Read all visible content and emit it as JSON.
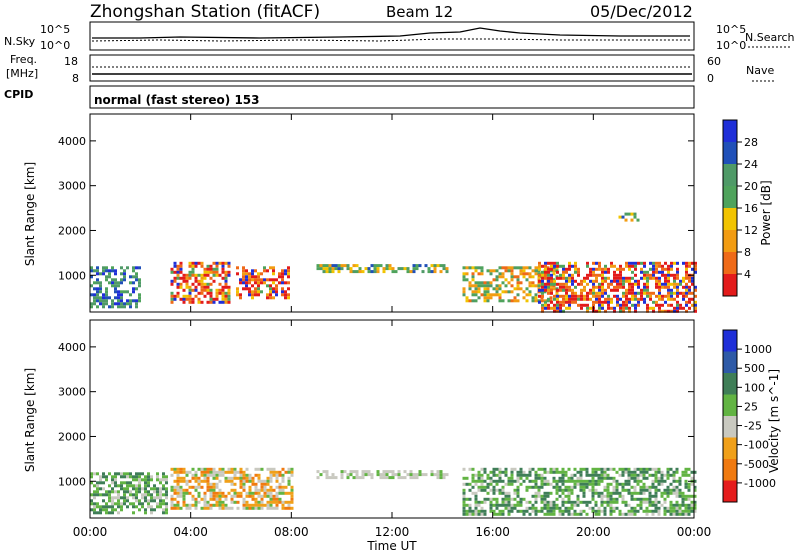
{
  "header": {
    "station_title": "Zhongshan Station (fitACF)",
    "beam_label": "Beam 12",
    "date_label": "05/Dec/2012"
  },
  "noise_panel": {
    "left_label": "N.Sky",
    "right_label": "N.Search",
    "left_ticks": [
      "10^5",
      "10^0"
    ],
    "right_ticks": [
      "10^5",
      "10^0"
    ]
  },
  "freq_panel": {
    "left_label_line1": "Freq.",
    "left_label_line2": "[MHz]",
    "right_label": "Nave",
    "left_ticks": [
      "18",
      "8"
    ],
    "right_ticks": [
      "60",
      "0"
    ]
  },
  "cpid_panel": {
    "label": "CPID",
    "mode_text": "normal (fast stereo) 153"
  },
  "x_axis": {
    "label": "Time UT",
    "ticks": [
      "00:00",
      "04:00",
      "08:00",
      "12:00",
      "16:00",
      "20:00",
      "00:00"
    ]
  },
  "colors": {
    "power_scale": [
      "#1f2fd8",
      "#2050b8",
      "#4f9a67",
      "#4fa35c",
      "#f2c400",
      "#f29c12",
      "#ef6a18",
      "#e31b1b"
    ],
    "velocity_scale": [
      "#1f2fd8",
      "#2e5aa7",
      "#3f7e57",
      "#62b443",
      "#c9c9c0",
      "#f0a01a",
      "#f07a10",
      "#e51c1c"
    ]
  },
  "chart_data": [
    {
      "type": "heatmap",
      "title": "Power",
      "xlabel": "Time UT",
      "ylabel": "Slant Range [km]",
      "x_range_hours_ut": [
        0,
        24
      ],
      "ylim_km": [
        180,
        4600
      ],
      "y_ticks": [
        1000,
        2000,
        3000,
        4000
      ],
      "colorbar": {
        "label": "Power [dB]",
        "ticks": [
          4,
          8,
          12,
          16,
          20,
          24,
          28
        ]
      },
      "echo_regions": [
        {
          "t_start_h": 0.0,
          "t_end_h": 2.0,
          "r_min_km": 300,
          "r_max_km": 1200,
          "level": "low-medium"
        },
        {
          "t_start_h": 3.2,
          "t_end_h": 5.5,
          "r_min_km": 400,
          "r_max_km": 1300,
          "level": "high"
        },
        {
          "t_start_h": 5.8,
          "t_end_h": 7.9,
          "r_min_km": 500,
          "r_max_km": 1200,
          "level": "high"
        },
        {
          "t_start_h": 9.0,
          "t_end_h": 14.2,
          "r_min_km": 1050,
          "r_max_km": 1250,
          "level": "medium"
        },
        {
          "t_start_h": 14.8,
          "t_end_h": 18.5,
          "r_min_km": 400,
          "r_max_km": 1200,
          "level": "medium-high"
        },
        {
          "t_start_h": 17.8,
          "t_end_h": 24.0,
          "r_min_km": 200,
          "r_max_km": 1300,
          "level": "high"
        },
        {
          "t_start_h": 21.0,
          "t_end_h": 21.8,
          "r_min_km": 2200,
          "r_max_km": 2400,
          "level": "medium"
        }
      ]
    },
    {
      "type": "heatmap",
      "title": "Velocity",
      "xlabel": "Time UT",
      "ylabel": "Slant Range [km]",
      "x_range_hours_ut": [
        0,
        24
      ],
      "ylim_km": [
        180,
        4600
      ],
      "y_ticks": [
        1000,
        2000,
        3000,
        4000
      ],
      "colorbar": {
        "label": "Velocity [m s^-1]",
        "ticks": [
          1000,
          500,
          100,
          25,
          -25,
          -100,
          -500,
          -1000
        ]
      },
      "echo_regions": [
        {
          "t_start_h": 0.0,
          "t_end_h": 3.0,
          "r_min_km": 300,
          "r_max_km": 1200,
          "level": "green"
        },
        {
          "t_start_h": 3.2,
          "t_end_h": 8.0,
          "r_min_km": 400,
          "r_max_km": 1300,
          "level": "orange"
        },
        {
          "t_start_h": 9.0,
          "t_end_h": 14.2,
          "r_min_km": 1050,
          "r_max_km": 1250,
          "level": "gray"
        },
        {
          "t_start_h": 14.8,
          "t_end_h": 24.0,
          "r_min_km": 250,
          "r_max_km": 1300,
          "level": "green"
        }
      ]
    }
  ]
}
